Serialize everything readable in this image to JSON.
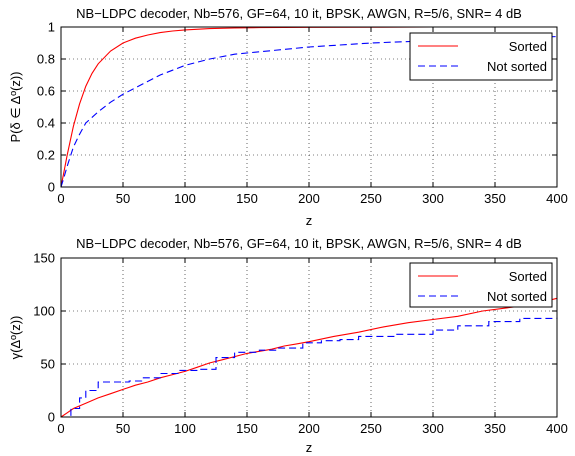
{
  "chart_data": [
    {
      "type": "line",
      "title": "NB−LDPC decoder, Nb=576, GF=64, 10 it, BPSK, AWGN, R=5/6, SNR= 4 dB",
      "xlabel": "z",
      "ylabel": "P(δ ∈ Δº(z))",
      "xlim": [
        0,
        400
      ],
      "ylim": [
        0,
        1
      ],
      "xticks": [
        0,
        50,
        100,
        150,
        200,
        250,
        300,
        350,
        400
      ],
      "yticks": [
        0,
        0.2,
        0.4,
        0.6,
        0.8,
        1
      ],
      "ytick_labels": [
        "0",
        "0.2",
        "0.4",
        "0.6",
        "0.8",
        "1"
      ],
      "grid": true,
      "legend_position": "top-right",
      "series": [
        {
          "name": "Sorted",
          "color": "#ff0000",
          "style": "solid",
          "x": [
            0,
            2,
            5,
            10,
            15,
            20,
            25,
            30,
            40,
            50,
            60,
            70,
            80,
            90,
            100,
            120,
            140,
            160,
            200,
            250,
            300,
            350,
            400
          ],
          "y": [
            0,
            0.08,
            0.2,
            0.38,
            0.52,
            0.63,
            0.71,
            0.77,
            0.85,
            0.9,
            0.93,
            0.95,
            0.965,
            0.975,
            0.982,
            0.99,
            0.994,
            0.996,
            0.998,
            0.999,
            1.0,
            1.0,
            1.0
          ]
        },
        {
          "name": "Not sorted",
          "color": "#0000ff",
          "style": "dashed",
          "x": [
            0,
            2,
            5,
            10,
            15,
            20,
            30,
            40,
            50,
            60,
            70,
            80,
            90,
            100,
            120,
            140,
            160,
            180,
            200,
            250,
            300,
            350,
            400
          ],
          "y": [
            0,
            0.05,
            0.13,
            0.25,
            0.33,
            0.4,
            0.47,
            0.53,
            0.58,
            0.62,
            0.66,
            0.7,
            0.73,
            0.76,
            0.8,
            0.83,
            0.845,
            0.86,
            0.875,
            0.9,
            0.915,
            0.93,
            0.94
          ]
        }
      ]
    },
    {
      "type": "line",
      "title": "NB−LDPC decoder, Nb=576, GF=64, 10 it, BPSK, AWGN, R=5/6, SNR= 4 dB",
      "xlabel": "z",
      "ylabel": "γ(Δº(z))",
      "xlim": [
        0,
        400
      ],
      "ylim": [
        0,
        150
      ],
      "xticks": [
        0,
        50,
        100,
        150,
        200,
        250,
        300,
        350,
        400
      ],
      "yticks": [
        0,
        50,
        100,
        150
      ],
      "ytick_labels": [
        "0",
        "50",
        "100",
        "150"
      ],
      "grid": true,
      "legend_position": "top-right",
      "series": [
        {
          "name": "Sorted",
          "color": "#ff0000",
          "style": "solid",
          "x": [
            0,
            5,
            10,
            20,
            30,
            40,
            50,
            60,
            70,
            80,
            90,
            100,
            110,
            120,
            130,
            140,
            150,
            160,
            170,
            180,
            190,
            200,
            220,
            240,
            260,
            280,
            300,
            320,
            340,
            360,
            380,
            400
          ],
          "y": [
            0,
            4,
            8,
            13,
            18,
            22,
            26,
            30,
            33,
            37,
            40,
            43,
            47,
            51,
            54,
            57,
            60,
            62,
            64,
            67,
            69,
            71,
            76,
            80,
            85,
            89,
            92,
            95,
            100,
            103,
            106,
            112
          ]
        },
        {
          "name": "Not sorted",
          "color": "#0000ff",
          "style": "dashed",
          "steps": true,
          "x": [
            0,
            8,
            15,
            20,
            30,
            40,
            55,
            65,
            80,
            95,
            110,
            125,
            140,
            160,
            175,
            195,
            210,
            225,
            240,
            270,
            300,
            320,
            345,
            370,
            400
          ],
          "y": [
            0,
            8,
            18,
            25,
            33,
            33,
            34,
            37,
            41,
            44,
            45,
            56,
            61,
            63,
            65,
            70,
            72,
            73,
            76,
            78,
            82,
            86,
            90,
            93,
            94
          ]
        }
      ]
    }
  ]
}
